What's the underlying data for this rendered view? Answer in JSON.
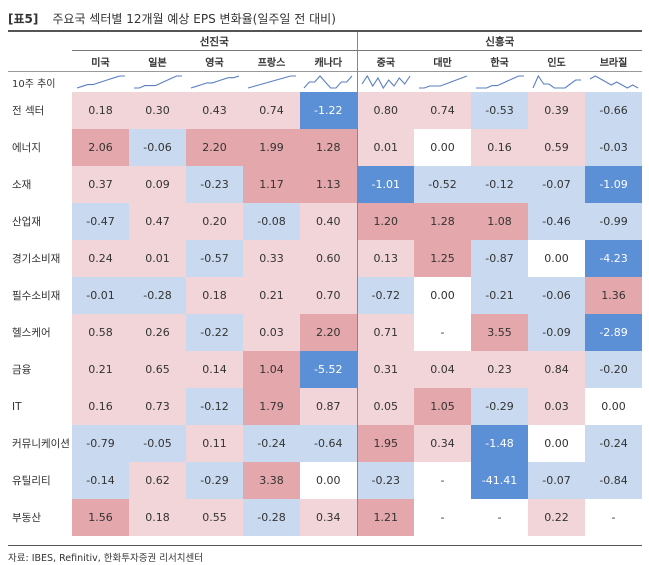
{
  "header": {
    "tag": "[표5]",
    "title": "주요국 섹터별 12개월 예상 EPS 변화율(일주일 전 대비)"
  },
  "groups": {
    "developed": "선진국",
    "emerging": "신흥국"
  },
  "countries": [
    "미국",
    "일본",
    "영국",
    "프랑스",
    "캐나다",
    "중국",
    "대만",
    "한국",
    "인도",
    "브라질"
  ],
  "trend_label": "10주 추이",
  "rows": [
    {
      "label": "전 섹터",
      "values": [
        "0.18",
        "0.30",
        "0.43",
        "0.74",
        "-1.22",
        "0.80",
        "0.74",
        "-0.53",
        "0.39",
        "-0.66"
      ],
      "tones": [
        "pk",
        "pk",
        "pk",
        "pk",
        "bl",
        "pk",
        "pk",
        "lb",
        "pk",
        "lb"
      ]
    },
    {
      "label": "에너지",
      "values": [
        "2.06",
        "-0.06",
        "2.20",
        "1.99",
        "1.28",
        "0.01",
        "0.00",
        "0.16",
        "0.59",
        "-0.03"
      ],
      "tones": [
        "rd",
        "lb",
        "rd",
        "rd",
        "rd",
        "pk",
        "wh",
        "pk",
        "pk",
        "lb"
      ]
    },
    {
      "label": "소재",
      "values": [
        "0.37",
        "0.09",
        "-0.23",
        "1.17",
        "1.13",
        "-1.01",
        "-0.52",
        "-0.12",
        "-0.07",
        "-1.09"
      ],
      "tones": [
        "pk",
        "pk",
        "lb",
        "rd",
        "rd",
        "bl",
        "lb",
        "lb",
        "lb",
        "bl"
      ]
    },
    {
      "label": "산업재",
      "values": [
        "-0.47",
        "0.47",
        "0.20",
        "-0.08",
        "0.40",
        "1.20",
        "1.28",
        "1.08",
        "-0.46",
        "-0.99"
      ],
      "tones": [
        "lb",
        "pk",
        "pk",
        "lb",
        "pk",
        "rd",
        "rd",
        "rd",
        "lb",
        "lb"
      ]
    },
    {
      "label": "경기소비재",
      "values": [
        "0.24",
        "0.01",
        "-0.57",
        "0.33",
        "0.60",
        "0.13",
        "1.25",
        "-0.87",
        "0.00",
        "-4.23"
      ],
      "tones": [
        "pk",
        "pk",
        "lb",
        "pk",
        "pk",
        "pk",
        "rd",
        "lb",
        "wh",
        "bl"
      ]
    },
    {
      "label": "필수소비재",
      "values": [
        "-0.01",
        "-0.28",
        "0.18",
        "0.21",
        "0.70",
        "-0.72",
        "0.00",
        "-0.21",
        "-0.06",
        "1.36"
      ],
      "tones": [
        "lb",
        "lb",
        "pk",
        "pk",
        "pk",
        "lb",
        "wh",
        "lb",
        "lb",
        "rd"
      ]
    },
    {
      "label": "헬스케어",
      "values": [
        "0.58",
        "0.26",
        "-0.22",
        "0.03",
        "2.20",
        "0.71",
        "-",
        "3.55",
        "-0.09",
        "-2.89"
      ],
      "tones": [
        "pk",
        "pk",
        "lb",
        "pk",
        "rd",
        "pk",
        "wh",
        "rd",
        "lb",
        "bl"
      ]
    },
    {
      "label": "금융",
      "values": [
        "0.21",
        "0.65",
        "0.14",
        "1.04",
        "-5.52",
        "0.31",
        "0.04",
        "0.23",
        "0.84",
        "-0.20"
      ],
      "tones": [
        "pk",
        "pk",
        "pk",
        "rd",
        "bl",
        "pk",
        "pk",
        "pk",
        "pk",
        "lb"
      ]
    },
    {
      "label": "IT",
      "values": [
        "0.16",
        "0.73",
        "-0.12",
        "1.79",
        "0.87",
        "0.05",
        "1.05",
        "-0.29",
        "0.03",
        "0.00"
      ],
      "tones": [
        "pk",
        "pk",
        "lb",
        "rd",
        "pk",
        "pk",
        "rd",
        "lb",
        "pk",
        "wh"
      ]
    },
    {
      "label": "커뮤니케이션",
      "values": [
        "-0.79",
        "-0.05",
        "0.11",
        "-0.24",
        "-0.64",
        "1.95",
        "0.34",
        "-1.48",
        "0.00",
        "-0.24"
      ],
      "tones": [
        "lb",
        "lb",
        "pk",
        "lb",
        "lb",
        "rd",
        "pk",
        "bl",
        "wh",
        "lb"
      ]
    },
    {
      "label": "유틸리티",
      "values": [
        "-0.14",
        "0.62",
        "-0.29",
        "3.38",
        "0.00",
        "-0.23",
        "-",
        "-41.41",
        "-0.07",
        "-0.84"
      ],
      "tones": [
        "lb",
        "pk",
        "lb",
        "rd",
        "wh",
        "lb",
        "wh",
        "bl",
        "lb",
        "lb"
      ]
    },
    {
      "label": "부동산",
      "values": [
        "1.56",
        "0.18",
        "0.55",
        "-0.28",
        "0.34",
        "1.21",
        "-",
        "-",
        "0.22",
        "-"
      ],
      "tones": [
        "rd",
        "pk",
        "pk",
        "lb",
        "pk",
        "rd",
        "wh",
        "wh",
        "pk",
        "wh"
      ]
    }
  ],
  "colors": {
    "pk": "#f2d5d8",
    "rd": "#e4a7ab",
    "lb": "#c9daf0",
    "bl": "#5b8fd6",
    "wh": "#ffffff",
    "spark": "#5b7fc2"
  },
  "sparklines": [
    [
      3,
      4,
      5,
      5,
      6,
      7,
      8,
      9,
      10,
      10
    ],
    [
      5,
      5,
      6,
      6,
      6,
      7,
      8,
      9,
      10,
      10
    ],
    [
      3,
      4,
      5,
      6,
      6,
      7,
      8,
      9,
      9,
      10
    ],
    [
      2,
      3,
      4,
      5,
      6,
      7,
      8,
      9,
      10,
      10
    ],
    [
      8,
      9,
      9,
      10,
      9,
      8,
      8,
      9,
      9,
      10
    ],
    [
      6,
      10,
      5,
      9,
      4,
      8,
      5,
      9,
      6,
      10
    ],
    [
      4,
      4,
      5,
      5,
      5,
      6,
      7,
      8,
      9,
      10
    ],
    [
      5,
      5,
      5,
      6,
      6,
      7,
      8,
      9,
      10,
      10
    ],
    [
      6,
      9,
      7,
      7,
      6,
      6,
      6,
      7,
      8,
      8
    ],
    [
      7,
      8,
      7,
      6,
      5,
      6,
      5,
      4,
      5,
      4
    ]
  ],
  "source": "자료: IBES, Refinitiv, 한화투자증권 리서치센터"
}
